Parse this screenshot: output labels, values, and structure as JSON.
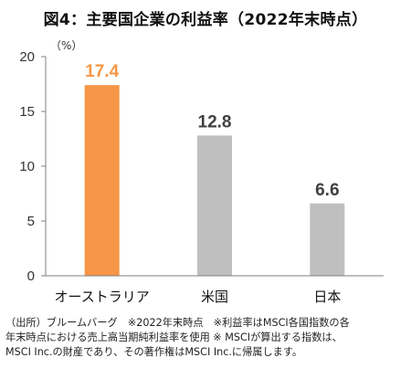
{
  "title": "図4：主要国企業の利益率（2022年末時点）",
  "source_lines": [
    "（出所）ブルームバーグ　※2022年末時点　※利益率はMSCI各国指数の各",
    "年末時点における売上高当期純利益率を使用 ※ MSCIが算出する指数は、",
    "MSCI Inc.の財産であり、その著作権はMSCI Inc.に帰属します。"
  ],
  "chart_data": {
    "type": "bar",
    "unit_label": "（%）",
    "categories": [
      "オーストラリア",
      "米国",
      "日本"
    ],
    "values": [
      17.4,
      12.8,
      6.6
    ],
    "value_labels": [
      "17.4",
      "12.8",
      "6.6"
    ],
    "colors": [
      "#f79646",
      "#bfbfbf",
      "#bfbfbf"
    ],
    "label_colors": [
      "#f79646",
      "#404040",
      "#404040"
    ],
    "yticks": [
      0,
      5,
      10,
      15,
      20
    ],
    "ylim": [
      0,
      20
    ],
    "grid": false
  }
}
